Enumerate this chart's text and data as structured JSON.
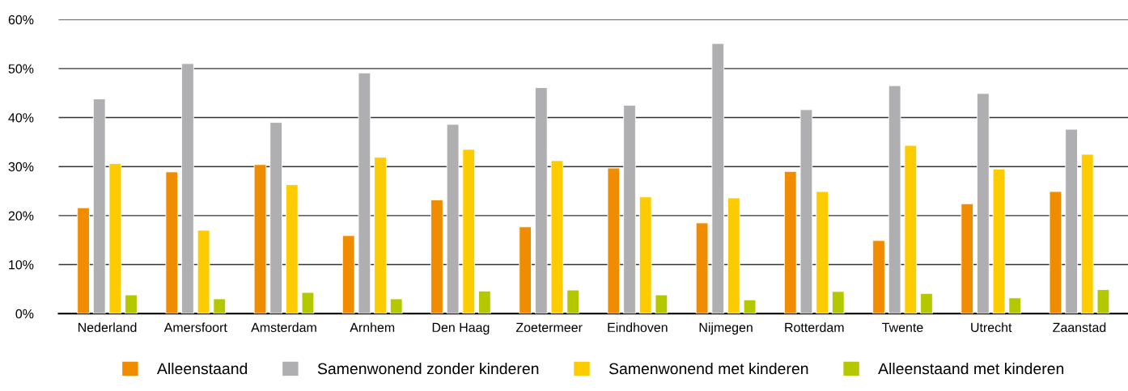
{
  "chart_data": {
    "type": "bar",
    "categories": [
      "Nederland",
      "Amersfoort",
      "Amsterdam",
      "Arnhem",
      "Den Haag",
      "Zoetermeer",
      "Eindhoven",
      "Nijmegen",
      "Rotterdam",
      "Twente",
      "Utrecht",
      "Zaanstad"
    ],
    "series": [
      {
        "name": "Alleenstaand",
        "color": "#f08c00",
        "values": [
          21.6,
          28.9,
          30.4,
          15.9,
          23.2,
          17.7,
          29.7,
          18.5,
          29.0,
          14.9,
          22.4,
          24.9
        ]
      },
      {
        "name": "Samenwonend zonder kinderen",
        "color": "#afafb1",
        "values": [
          43.8,
          51.0,
          39.0,
          49.1,
          38.6,
          46.1,
          42.5,
          55.1,
          41.6,
          46.5,
          44.9,
          37.6
        ]
      },
      {
        "name": "Samenwonend met kinderen",
        "color": "#fccb00",
        "values": [
          30.6,
          17.0,
          26.3,
          31.9,
          33.5,
          31.2,
          23.8,
          23.6,
          24.9,
          34.3,
          29.5,
          32.5
        ]
      },
      {
        "name": "Alleenstaand met kinderen",
        "color": "#b4c800",
        "values": [
          3.8,
          3.0,
          4.3,
          3.0,
          4.6,
          4.8,
          3.8,
          2.8,
          4.5,
          4.1,
          3.2,
          4.9
        ]
      }
    ],
    "ylim": [
      0,
      60
    ],
    "yticks": [
      {
        "value": 0,
        "label": "0%"
      },
      {
        "value": 10,
        "label": "10%"
      },
      {
        "value": 20,
        "label": "20%"
      },
      {
        "value": 30,
        "label": "30%"
      },
      {
        "value": 40,
        "label": "40%"
      },
      {
        "value": 50,
        "label": "50%"
      },
      {
        "value": 60,
        "label": "60%"
      }
    ],
    "grid": "y",
    "legend": "bottom"
  }
}
